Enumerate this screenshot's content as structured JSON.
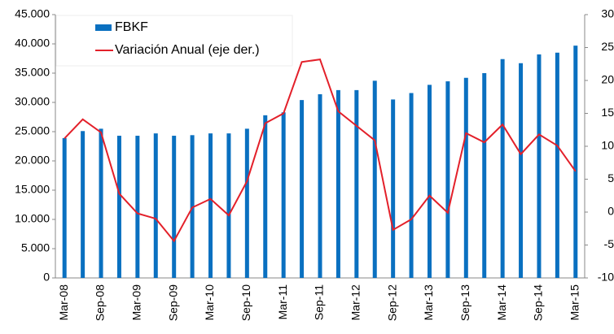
{
  "chart_data": {
    "type": "bar_line",
    "categories": [
      "Mar-08",
      null,
      "Sep-08",
      null,
      "Mar-09",
      null,
      "Sep-09",
      null,
      "Mar-10",
      null,
      "Sep-10",
      null,
      "Mar-11",
      null,
      "Sep-11",
      null,
      "Mar-12",
      null,
      "Sep-12",
      null,
      "Mar-13",
      null,
      "Sep-13",
      null,
      "Mar-14",
      null,
      "Sep-14",
      null,
      "Mar-15"
    ],
    "series": [
      {
        "name": "FBKF",
        "type": "bar",
        "color": "#0a70c0",
        "values": [
          23900,
          25100,
          25500,
          24300,
          24300,
          24700,
          24300,
          24400,
          24700,
          24700,
          25500,
          27800,
          28300,
          30400,
          31400,
          32100,
          32100,
          33700,
          30500,
          31600,
          33000,
          33600,
          34200,
          35000,
          37400,
          36700,
          38200,
          38500,
          39700
        ]
      },
      {
        "name": "Variación Anual (eje der.)",
        "type": "line",
        "axis": "y2",
        "color": "#e3202a",
        "values": [
          11.2,
          14.1,
          12.1,
          2.8,
          -0.2,
          -1,
          -4.4,
          0.7,
          2,
          -0.5,
          4.7,
          13.5,
          15,
          22.8,
          23.2,
          15.3,
          13.1,
          10.9,
          -2.7,
          -1.1,
          2.5,
          -0.1,
          12,
          10.6,
          13.3,
          8.8,
          11.8,
          10.1,
          6.2
        ]
      }
    ],
    "ylim": [
      0,
      45000
    ],
    "yticks": [
      0,
      {
        "value": 5000,
        "label": "5.000"
      },
      {
        "value": 10000,
        "label": "10.000"
      },
      {
        "value": 15000,
        "label": "15.000"
      },
      {
        "value": 20000,
        "label": "20.000"
      },
      {
        "value": 25000,
        "label": "25.000"
      },
      {
        "value": 30000,
        "label": "30.000"
      },
      {
        "value": 35000,
        "label": "35.000"
      },
      {
        "value": 40000,
        "label": "40.000"
      },
      {
        "value": 45000,
        "label": "45.000"
      }
    ],
    "y2lim": [
      -10,
      30
    ],
    "y2ticks": [
      -10,
      -5,
      0,
      5,
      10,
      15,
      20,
      25,
      30
    ],
    "legend": "upper left",
    "grid": false
  }
}
